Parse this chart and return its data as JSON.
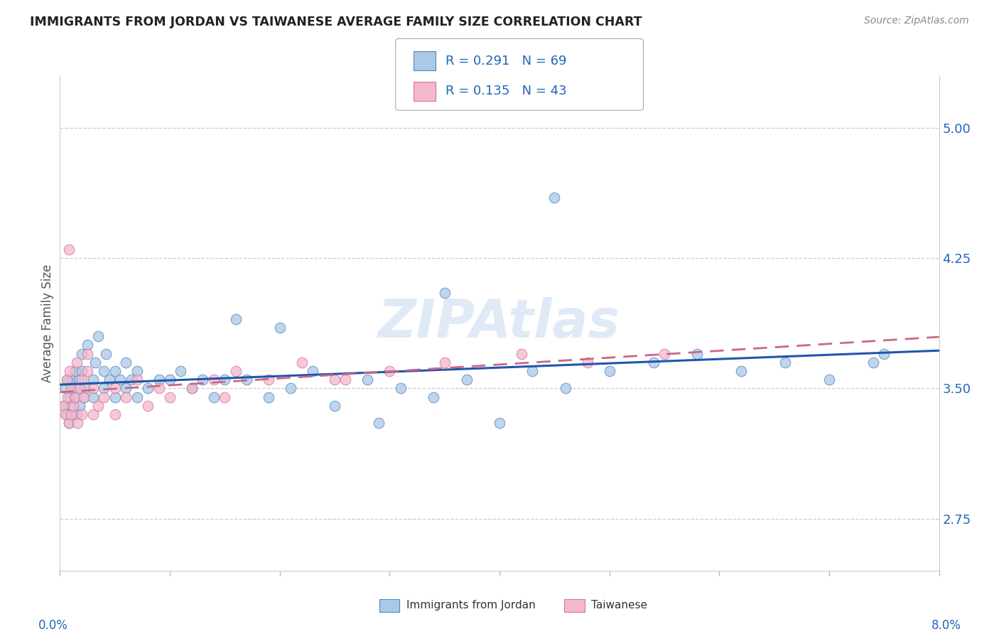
{
  "title": "IMMIGRANTS FROM JORDAN VS TAIWANESE AVERAGE FAMILY SIZE CORRELATION CHART",
  "source": "Source: ZipAtlas.com",
  "ylabel": "Average Family Size",
  "xlim": [
    0.0,
    0.08
  ],
  "ylim": [
    2.45,
    5.3
  ],
  "yticks": [
    2.75,
    3.5,
    4.25,
    5.0
  ],
  "legend1_R": "0.291",
  "legend1_N": "69",
  "legend2_R": "0.135",
  "legend2_N": "43",
  "jordan_color": "#aac8e8",
  "jordan_edge": "#5588bb",
  "taiwanese_color": "#f5b8cb",
  "taiwanese_edge": "#cc7799",
  "jordan_line_color": "#2255aa",
  "taiwanese_line_color": "#cc6688",
  "watermark": "ZIPAtlas",
  "jordan_x": [
    0.0004,
    0.0005,
    0.0006,
    0.0007,
    0.0008,
    0.0009,
    0.001,
    0.001,
    0.0012,
    0.0013,
    0.0014,
    0.0015,
    0.0016,
    0.0017,
    0.0018,
    0.002,
    0.002,
    0.0022,
    0.0023,
    0.0025,
    0.003,
    0.003,
    0.0032,
    0.0035,
    0.004,
    0.004,
    0.0042,
    0.0045,
    0.005,
    0.005,
    0.0055,
    0.006,
    0.006,
    0.0065,
    0.007,
    0.007,
    0.008,
    0.009,
    0.01,
    0.011,
    0.012,
    0.013,
    0.014,
    0.015,
    0.017,
    0.019,
    0.021,
    0.023,
    0.025,
    0.028,
    0.031,
    0.034,
    0.037,
    0.04,
    0.043,
    0.046,
    0.05,
    0.054,
    0.058,
    0.062,
    0.045,
    0.066,
    0.07,
    0.074,
    0.02,
    0.016,
    0.029,
    0.035,
    0.075
  ],
  "jordan_y": [
    3.4,
    3.5,
    3.35,
    3.55,
    3.3,
    3.45,
    3.4,
    3.55,
    3.5,
    3.45,
    3.6,
    3.35,
    3.5,
    3.55,
    3.4,
    3.6,
    3.7,
    3.45,
    3.5,
    3.75,
    3.45,
    3.55,
    3.65,
    3.8,
    3.5,
    3.6,
    3.7,
    3.55,
    3.45,
    3.6,
    3.55,
    3.5,
    3.65,
    3.55,
    3.45,
    3.6,
    3.5,
    3.55,
    3.55,
    3.6,
    3.5,
    3.55,
    3.45,
    3.55,
    3.55,
    3.45,
    3.5,
    3.6,
    3.4,
    3.55,
    3.5,
    3.45,
    3.55,
    3.3,
    3.6,
    3.5,
    3.6,
    3.65,
    3.7,
    3.6,
    4.6,
    3.65,
    3.55,
    3.65,
    3.85,
    3.9,
    3.3,
    4.05,
    3.7
  ],
  "taiwanese_x": [
    0.0003,
    0.0005,
    0.0007,
    0.0008,
    0.001,
    0.001,
    0.0012,
    0.0014,
    0.0016,
    0.0018,
    0.002,
    0.002,
    0.0022,
    0.0025,
    0.003,
    0.003,
    0.0035,
    0.004,
    0.005,
    0.005,
    0.006,
    0.007,
    0.008,
    0.009,
    0.01,
    0.012,
    0.014,
    0.016,
    0.019,
    0.022,
    0.026,
    0.03,
    0.035,
    0.042,
    0.048,
    0.055,
    0.0006,
    0.0009,
    0.0015,
    0.0025,
    0.015,
    0.025,
    0.0008
  ],
  "taiwanese_y": [
    3.4,
    3.35,
    3.45,
    3.3,
    3.35,
    3.5,
    3.4,
    3.45,
    3.3,
    3.5,
    3.35,
    3.55,
    3.45,
    3.6,
    3.35,
    3.5,
    3.4,
    3.45,
    3.35,
    3.5,
    3.45,
    3.55,
    3.4,
    3.5,
    3.45,
    3.5,
    3.55,
    3.6,
    3.55,
    3.65,
    3.55,
    3.6,
    3.65,
    3.7,
    3.65,
    3.7,
    3.55,
    3.6,
    3.65,
    3.7,
    3.45,
    3.55,
    4.3
  ]
}
